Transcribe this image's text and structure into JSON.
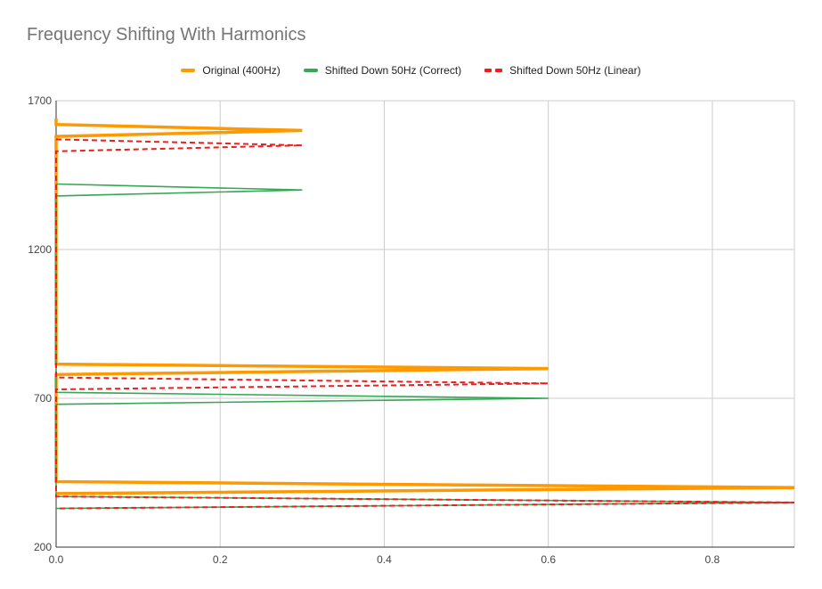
{
  "chart_data": {
    "type": "line",
    "title": "Frequency Shifting With Harmonics",
    "xlabel": "",
    "ylabel": "",
    "xlim": [
      0,
      0.9
    ],
    "ylim": [
      200,
      1700
    ],
    "x_ticks": [
      "0.0",
      "0.2",
      "0.4",
      "0.6",
      "0.8"
    ],
    "x_tick_values": [
      0,
      0.2,
      0.4,
      0.6,
      0.8
    ],
    "y_ticks": [
      "200",
      "700",
      "1200",
      "1700"
    ],
    "y_tick_values": [
      200,
      700,
      1200,
      1700
    ],
    "grid": true,
    "legend_position": "top",
    "series": [
      {
        "name": "Original (400Hz)",
        "color": "#ff9900",
        "style": "solid",
        "points": [
          [
            0.0,
            1640
          ],
          [
            0.0,
            1620
          ],
          [
            0.3,
            1600
          ],
          [
            0.0,
            1580
          ],
          [
            0.0,
            1220
          ],
          [
            0.0,
            820
          ],
          [
            0.0,
            815
          ],
          [
            0.6,
            800
          ],
          [
            0.0,
            780
          ],
          [
            0.0,
            420
          ],
          [
            0.0,
            420
          ],
          [
            0.9,
            400
          ],
          [
            0.0,
            380
          ],
          [
            0.0,
            380
          ]
        ]
      },
      {
        "name": "Shifted Down 50Hz (Correct)",
        "color": "#34a853",
        "style": "solid",
        "points": [
          [
            0.0,
            1420
          ],
          [
            0.3,
            1400
          ],
          [
            0.0,
            1380
          ],
          [
            0.0,
            720
          ],
          [
            0.6,
            700
          ],
          [
            0.0,
            680
          ],
          [
            0.0,
            370
          ],
          [
            0.9,
            350
          ],
          [
            0.0,
            330
          ]
        ]
      },
      {
        "name": "Shifted Down 50Hz (Linear)",
        "color": "#ea2020",
        "style": "dashed",
        "points": [
          [
            0.0,
            1570
          ],
          [
            0.3,
            1550
          ],
          [
            0.0,
            1530
          ],
          [
            0.0,
            770
          ],
          [
            0.6,
            750
          ],
          [
            0.0,
            730
          ],
          [
            0.0,
            370
          ],
          [
            0.9,
            350
          ],
          [
            0.0,
            330
          ]
        ]
      }
    ]
  }
}
